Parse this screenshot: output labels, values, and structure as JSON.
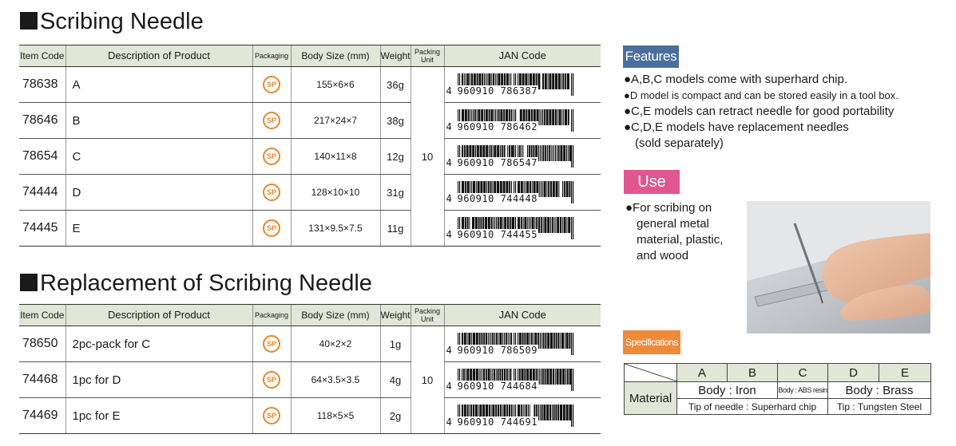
{
  "columns": {
    "item_code": "Item Code",
    "description": "Description of Product",
    "packaging": "Packaging",
    "body_size": "Body Size (mm)",
    "weight": "Weight",
    "packing_unit": "Packing Unit",
    "jan": "JAN Code"
  },
  "scribing": {
    "title": "Scribing Needle",
    "packing_unit": "10",
    "rows": [
      {
        "code": "78638",
        "desc": "A",
        "pkg": "SP",
        "size": "155×6×6",
        "weight": "36g",
        "jan_lead": "4",
        "jan_digits": "960910 786387"
      },
      {
        "code": "78646",
        "desc": "B",
        "pkg": "SP",
        "size": "217×24×7",
        "weight": "38g",
        "jan_lead": "4",
        "jan_digits": "960910 786462"
      },
      {
        "code": "78654",
        "desc": "C",
        "pkg": "SP",
        "size": "140×11×8",
        "weight": "12g",
        "jan_lead": "4",
        "jan_digits": "960910 786547"
      },
      {
        "code": "74444",
        "desc": "D",
        "pkg": "SP",
        "size": "128×10×10",
        "weight": "31g",
        "jan_lead": "4",
        "jan_digits": "960910 744448"
      },
      {
        "code": "74445",
        "desc": "E",
        "pkg": "SP",
        "size": "131×9.5×7.5",
        "weight": "11g",
        "jan_lead": "4",
        "jan_digits": "960910 744455"
      }
    ]
  },
  "replacement": {
    "title": "Replacement of Scribing Needle",
    "packing_unit": "10",
    "rows": [
      {
        "code": "78650",
        "desc": "2pc-pack for C",
        "pkg": "SP",
        "size": "40×2×2",
        "weight": "1g",
        "jan_lead": "4",
        "jan_digits": "960910 786509"
      },
      {
        "code": "74468",
        "desc": "1pc for D",
        "pkg": "SP",
        "size": "64×3.5×3.5",
        "weight": "4g",
        "jan_lead": "4",
        "jan_digits": "960910 744684"
      },
      {
        "code": "74469",
        "desc": "1pc for E",
        "pkg": "SP",
        "size": "118×5×5",
        "weight": "2g",
        "jan_lead": "4",
        "jan_digits": "960910 744691"
      }
    ]
  },
  "features": {
    "label": "Features",
    "items": [
      "●A,B,C models come with superhard chip.",
      "●D model is compact and can be stored easily in a tool box.",
      "●C,E models can retract needle for good portability",
      "●C,D,E models have replacement needles",
      "(sold separately)"
    ]
  },
  "use": {
    "label": "Use",
    "lines": [
      "●For scribing on",
      "general metal",
      "material, plastic,",
      "and wood"
    ]
  },
  "specifications": {
    "label": "Specifications",
    "models": [
      "A",
      "B",
      "C",
      "D",
      "E"
    ],
    "material_label": "Material",
    "body_iron": "Body : Iron",
    "body_abs": "Body : ABS resin",
    "body_brass": "Body : Brass",
    "tip_superhard": "Tip of needle : Superhard chip",
    "tip_tungsten": "Tip : Tungsten Steel"
  },
  "colors": {
    "header_bg": "#e1e6d6",
    "features_tag": "#4a6e9e",
    "use_tag": "#e0578f",
    "spec_tag": "#ed8a3c",
    "sp_mark": "#e8872a"
  },
  "icons": {
    "packaging": "sp-circle-icon",
    "photo": "scribing-hand-photo"
  }
}
